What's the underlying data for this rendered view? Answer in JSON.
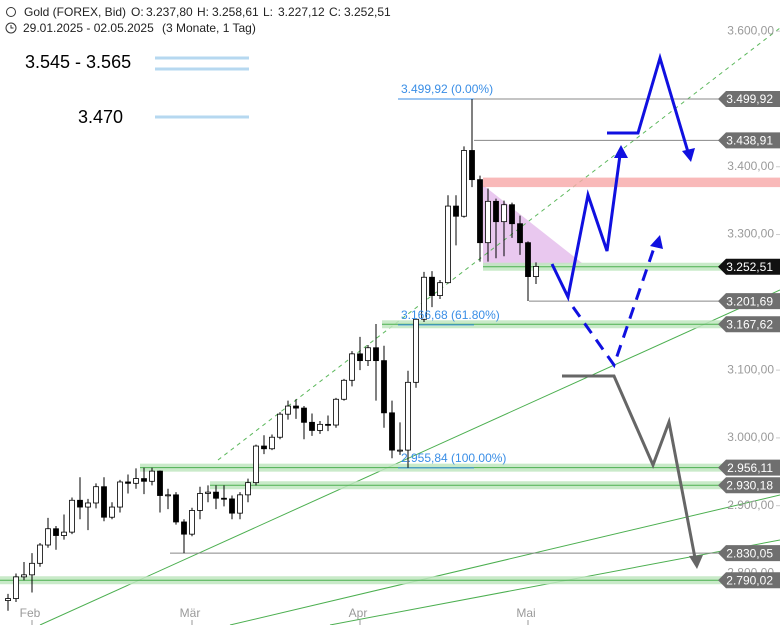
{
  "chart_data": {
    "type": "candlestick",
    "title": "Gold (FOREX, Bid)",
    "header": [
      {
        "label": "O:",
        "value": "3.237,80"
      },
      {
        "label": "H:",
        "value": "3.258,61"
      },
      {
        "label": "L:",
        "value": "3.227,12"
      },
      {
        "label": "C:",
        "value": "3.252,51"
      }
    ],
    "subtitle": "29.01.2025 - 02.05.2025",
    "period": "(3 Monate, 1 Tag)",
    "targets": [
      "3.545 - 3.565",
      "3.470"
    ],
    "categories": [
      null,
      null,
      null,
      "Feb",
      null,
      null,
      null,
      null,
      null,
      null,
      null,
      null,
      null,
      null,
      null,
      null,
      null,
      null,
      null,
      null,
      null,
      null,
      null,
      "Mär",
      null,
      null,
      null,
      null,
      null,
      null,
      null,
      null,
      null,
      null,
      null,
      null,
      null,
      null,
      null,
      null,
      null,
      null,
      null,
      null,
      "Apr",
      null,
      null,
      null,
      null,
      null,
      null,
      null,
      null,
      null,
      null,
      null,
      null,
      null,
      null,
      null,
      null,
      null,
      null,
      null,
      null,
      "Mai",
      null
    ],
    "open": [
      2760,
      2763,
      2795,
      2798,
      2815,
      2842,
      2866,
      2856,
      2861,
      2908,
      2898,
      2904,
      2928,
      2883,
      2898,
      2935,
      2933,
      2940,
      2936,
      2951,
      2915,
      2916,
      2876,
      2858,
      2893,
      2918,
      2920,
      2911,
      2910,
      2889,
      2916,
      2934,
      2988,
      2984,
      3001,
      3035,
      3047,
      3044,
      3023,
      3011,
      3020,
      3019,
      3057,
      3085,
      3124,
      3114,
      3133,
      3114,
      3037,
      2982,
      2982,
      3082,
      3175,
      3237,
      3210,
      3229,
      3342,
      3327,
      3424,
      3381,
      3288,
      3349,
      3319,
      3344,
      3316,
      3288,
      3238
    ],
    "high": [
      2770,
      2800,
      2817,
      2830,
      2845,
      2882,
      2870,
      2887,
      2912,
      2942,
      2910,
      2933,
      2942,
      2905,
      2938,
      2946,
      2955,
      2956,
      2956,
      2952,
      2925,
      2920,
      2880,
      2897,
      2928,
      2930,
      2930,
      2930,
      2915,
      2920,
      2940,
      2990,
      3004,
      3005,
      3038,
      3055,
      3057,
      3047,
      3036,
      3025,
      3033,
      3059,
      3087,
      3128,
      3149,
      3137,
      3168,
      3136,
      3055,
      3023,
      3099,
      3176,
      3245,
      3246,
      3233,
      3358,
      3358,
      3430,
      3500,
      3387,
      3368,
      3353,
      3350,
      3347,
      3328,
      3290,
      3259
    ],
    "low": [
      2745,
      2758,
      2790,
      2772,
      2810,
      2838,
      2835,
      2850,
      2858,
      2880,
      2864,
      2896,
      2877,
      2880,
      2890,
      2918,
      2925,
      2917,
      2930,
      2890,
      2895,
      2872,
      2830,
      2855,
      2880,
      2905,
      2895,
      2899,
      2880,
      2880,
      2905,
      2930,
      2976,
      2982,
      2998,
      3027,
      3028,
      2998,
      3003,
      3006,
      3010,
      3015,
      3055,
      3076,
      3100,
      3106,
      3055,
      3015,
      2970,
      2975,
      2956,
      3074,
      3171,
      3193,
      3205,
      3228,
      3284,
      3325,
      3370,
      3260,
      3260,
      3265,
      3268,
      3295,
      3270,
      3202,
      3227
    ],
    "close": [
      2763,
      2795,
      2798,
      2815,
      2842,
      2866,
      2856,
      2861,
      2908,
      2898,
      2904,
      2928,
      2883,
      2898,
      2935,
      2933,
      2940,
      2936,
      2951,
      2915,
      2916,
      2876,
      2858,
      2893,
      2918,
      2920,
      2911,
      2910,
      2889,
      2916,
      2934,
      2988,
      2984,
      3001,
      3035,
      3047,
      3044,
      3023,
      3011,
      3020,
      3019,
      3057,
      3085,
      3124,
      3114,
      3133,
      3114,
      3037,
      2982,
      2982,
      3082,
      3175,
      3237,
      3210,
      3229,
      3342,
      3327,
      3424,
      3381,
      3288,
      3349,
      3319,
      3344,
      3316,
      3288,
      3238,
      3253
    ],
    "ylim": [
      2724,
      3646
    ],
    "yticks": [
      {
        "value": 3600,
        "label": "3.600,00"
      },
      {
        "value": 3400,
        "label": "3.400,00"
      },
      {
        "value": 3300,
        "label": "3.300,00"
      },
      {
        "value": 3100,
        "label": "3.100,00"
      },
      {
        "value": 3000,
        "label": "3.000,00"
      },
      {
        "value": 2900,
        "label": "2.900,00"
      },
      {
        "value": 2800,
        "label": "2.800,00"
      }
    ],
    "levels": [
      {
        "value": 3499.92,
        "label": "3.499,92",
        "highlight": false
      },
      {
        "value": 3438.91,
        "label": "3.438,91",
        "highlight": false
      },
      {
        "value": 3252.51,
        "label": "3.252,51",
        "highlight": true,
        "current": true
      },
      {
        "value": 3201.69,
        "label": "3.201,69",
        "highlight": false
      },
      {
        "value": 3167.62,
        "label": "3.167,62",
        "highlight": true
      },
      {
        "value": 2956.11,
        "label": "2.956,11",
        "highlight": true
      },
      {
        "value": 2930.18,
        "label": "2.930,18",
        "highlight": true
      },
      {
        "value": 2830.05,
        "label": "2.830,05",
        "highlight": false
      },
      {
        "value": 2790.02,
        "label": "2.790,02",
        "highlight": true
      }
    ],
    "fib_levels": [
      {
        "value": 3499.92,
        "label": "3.499,92 (0.00%)"
      },
      {
        "value": 3166.68,
        "label": "3.166,68 (61.80%)"
      },
      {
        "value": 2955.84,
        "label": "2.955,84 (100.00%)"
      }
    ],
    "resistance_zone": [
      3370,
      3384
    ],
    "up_color": "#ffffff",
    "down_color": "#000000"
  }
}
